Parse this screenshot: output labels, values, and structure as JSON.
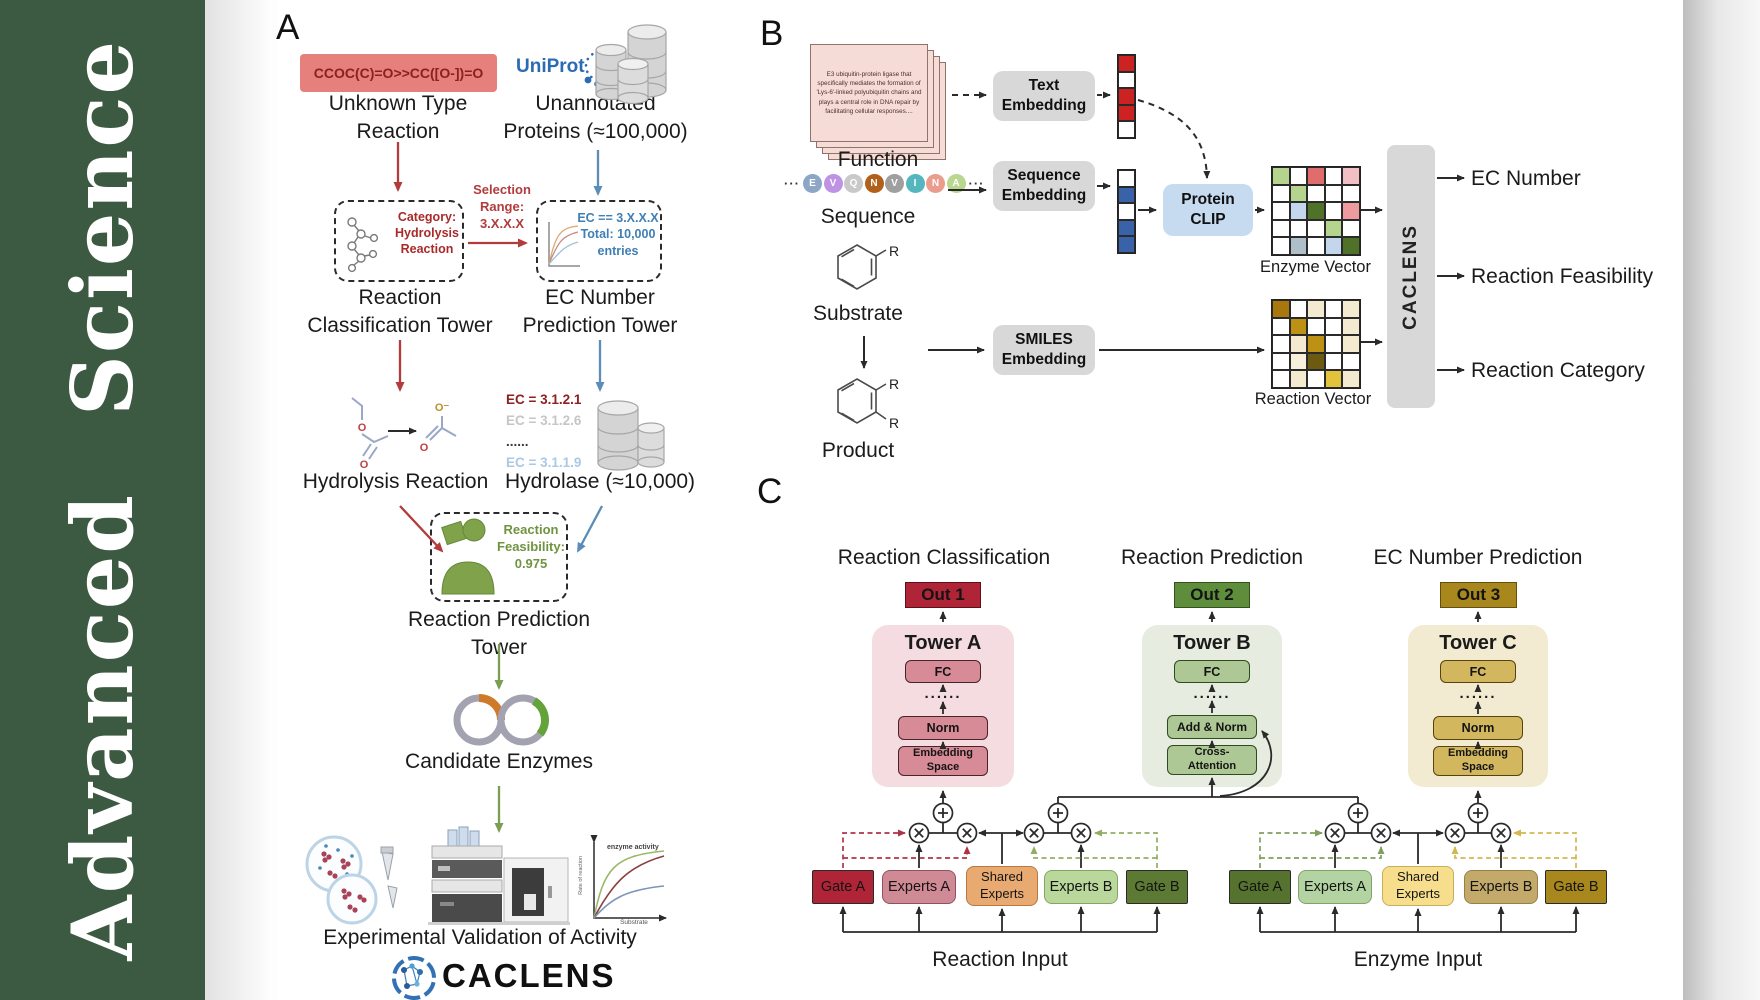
{
  "sidebar": {
    "journal": "Advanced Science"
  },
  "colors": {
    "sidebar_green": "#3c5a42",
    "smiles_bg": "#e5807d",
    "smiles_text": "#8c1f1f",
    "uniprot_blue": "#2b6bb2",
    "red_accent": "#b23b3b",
    "blue_accent": "#5b8db8",
    "green_accent": "#7a9e53",
    "category_red": "#aa2a2a",
    "ec_blue": "#3f7fb5",
    "enzyme_green": "#7fa24a",
    "feasibility_green": "#6f9440",
    "embedding_gray": "#d8d8d8",
    "protein_clip_blue": "#c6daf0",
    "out1_red": "#b02437",
    "out2_green": "#5e8e3c",
    "out3_gold": "#a8871c",
    "tower_a_bg": "#f4dce0",
    "tower_b_bg": "#e6ecdf",
    "tower_c_bg": "#f2ead1"
  },
  "panel_a": {
    "label": "A",
    "smiles": "CCOC(C)=O>>CC([O-])=O",
    "uniprot": "UniProt",
    "unknown": "Unknown Type\nReaction",
    "unannotated": "Unannotated\nProteins (≈100,000)",
    "selection": "Selection\nRange:\n3.X.X.X",
    "category": "Category:\nHydrolysis\nReaction",
    "ec_filter": "EC == 3.X.X.X\nTotal: 10,000\nentries",
    "classification_tower": "Reaction\nClassification Tower",
    "ec_tower": "EC Number\nPrediction Tower",
    "ec_list": [
      "EC = 3.1.2.1",
      "EC = 3.1.2.6",
      "......",
      "EC = 3.1.1.9"
    ],
    "hydrolysis": "Hydrolysis Reaction",
    "hydrolase": "Hydrolase (≈10,000)",
    "enzyme": "Enzyme",
    "feasibility": "Reaction\nFeasibility:\n0.975",
    "prediction_tower": "Reaction Prediction Tower",
    "candidate": "Candidate Enzymes",
    "graph_ylabel": "Rate of reaction",
    "graph_xlabel": "Substrate",
    "graph_annotation": "enzyme activity",
    "validation": "Experimental Validation of Activity",
    "caclens": "CACLENS"
  },
  "panel_b": {
    "label": "B",
    "function_card": "E3 ubiquitin-protein ligase that specifically mediates the formation of 'Lys-6'-linked polyubiquitin chains and plays a central role in DNA repair by facilitating cellular responses....",
    "function": "Function",
    "ellipsis": "···",
    "sequence_residues": [
      "E",
      "V",
      "Q",
      "N",
      "V",
      "I",
      "N",
      "A"
    ],
    "residue_colors": [
      "#8ca6c6",
      "#bf93e4",
      "#c9c9c9",
      "#b0601a",
      "#9f9f9f",
      "#55b7bd",
      "#eb9d8d",
      "#b8d78f"
    ],
    "sequence": "Sequence",
    "substrate": "Substrate",
    "product": "Product",
    "r_label": "R",
    "text_embedding": "Text\nEmbedding",
    "sequence_embedding": "Sequence\nEmbedding",
    "smiles_embedding": "SMILES\nEmbedding",
    "protein_clip": "Protein\nCLIP",
    "enzyme_vector_label": "Enzyme Vector",
    "reaction_vector_label": "Reaction Vector",
    "caclens_bar": "CACLENS",
    "outputs": [
      "EC Number",
      "Reaction Feasibility",
      "Reaction Category"
    ]
  },
  "panel_c": {
    "label": "C",
    "columns": [
      {
        "title": "Reaction Classification",
        "out": "Out 1",
        "tower": "Tower A",
        "fc": "FC",
        "dots": "......",
        "mid": "Norm",
        "bottom": "Embedding\nSpace"
      },
      {
        "title": "Reaction Prediction",
        "out": "Out 2",
        "tower": "Tower B",
        "fc": "FC",
        "dots": "......",
        "mid": "Add & Norm",
        "bottom": "Cross-\nAttention"
      },
      {
        "title": "EC Number Prediction",
        "out": "Out 3",
        "tower": "Tower C",
        "fc": "FC",
        "dots": "......",
        "mid": "Norm",
        "bottom": "Embedding\nSpace"
      }
    ],
    "groups": [
      {
        "gate_a": "Gate A",
        "experts_a": "Experts A",
        "shared": "Shared\nExperts",
        "experts_b": "Experts B",
        "gate_b": "Gate B",
        "input": "Reaction Input"
      },
      {
        "gate_a": "Gate A",
        "experts_a": "Experts A",
        "shared": "Shared\nExperts",
        "experts_b": "Experts B",
        "gate_b": "Gate B",
        "input": "Enzyme Input"
      }
    ]
  },
  "vectors": {
    "text_vector": [
      "#cc2222",
      "#ffffff",
      "#cc2222",
      "#cc2222",
      "#ffffff"
    ],
    "sequence_vector": [
      "#ffffff",
      "#3a62a8",
      "#ffffff",
      "#3a62a8",
      "#3a62a8"
    ],
    "enzyme_matrix": [
      [
        "#b5d48e",
        "#ffffff",
        "#e06c6c",
        "#ffffff",
        "#f2c0c4"
      ],
      [
        "#ffffff",
        "#b5d48e",
        "#ffffff",
        "#ffffff",
        "#ffffff"
      ],
      [
        "#ffffff",
        "#c3d6ec",
        "#4f7228",
        "#ffffff",
        "#ee9a9e"
      ],
      [
        "#ffffff",
        "#ffffff",
        "#ffffff",
        "#b5d48e",
        "#ffffff"
      ],
      [
        "#ffffff",
        "#aebfc9",
        "#ffffff",
        "#c3d6ec",
        "#4f7228"
      ]
    ],
    "reaction_matrix": [
      [
        "#a8780f",
        "#ffffff",
        "#f3ead0",
        "#ffffff",
        "#f3ead0"
      ],
      [
        "#ffffff",
        "#bd9114",
        "#ffffff",
        "#ffffff",
        "#f3ead0"
      ],
      [
        "#ffffff",
        "#f3ead0",
        "#bd9114",
        "#ffffff",
        "#f3ead0"
      ],
      [
        "#ffffff",
        "#f7f1dc",
        "#6b5a10",
        "#ffffff",
        "#ffffff"
      ],
      [
        "#ffffff",
        "#f3ead0",
        "#ffffff",
        "#e3c23c",
        "#f3ead0"
      ]
    ]
  }
}
